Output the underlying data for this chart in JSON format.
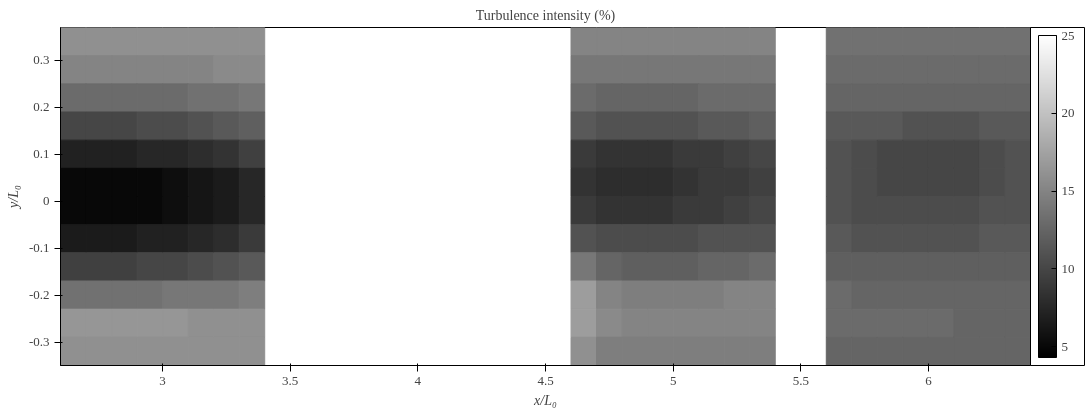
{
  "chart_data": {
    "type": "heatmap",
    "title": "Turbulence intensity (%)",
    "xlabel": "x/L₀",
    "ylabel": "y/L₀",
    "x": [
      2.65,
      2.75,
      2.85,
      2.95,
      3.05,
      3.15,
      3.25,
      3.35,
      3.45,
      3.55,
      3.65,
      3.75,
      3.85,
      3.95,
      4.05,
      4.15,
      4.25,
      4.35,
      4.45,
      4.55,
      4.65,
      4.75,
      4.85,
      4.95,
      5.05,
      5.15,
      5.25,
      5.35,
      5.45,
      5.55,
      5.65,
      5.75,
      5.85,
      5.95,
      6.05,
      6.15,
      6.25,
      6.35
    ],
    "y": [
      0.34,
      0.28,
      0.22,
      0.16,
      0.1,
      0.04,
      -0.02,
      -0.08,
      -0.14,
      -0.2,
      -0.26,
      -0.32
    ],
    "cells": [
      [
        16,
        16,
        16,
        16,
        16,
        16,
        16,
        16,
        null,
        null,
        null,
        null,
        null,
        null,
        null,
        null,
        null,
        null,
        null,
        null,
        15,
        15,
        15,
        15,
        15,
        15,
        15,
        15,
        null,
        null,
        13.5,
        13.5,
        13.5,
        13.5,
        13.5,
        13.5,
        13.5,
        13.5
      ],
      [
        15,
        15,
        15,
        15,
        15,
        15,
        15.5,
        15.5,
        null,
        null,
        null,
        null,
        null,
        null,
        null,
        null,
        null,
        null,
        null,
        null,
        14,
        14,
        14,
        14,
        14,
        14,
        14,
        14,
        null,
        null,
        13,
        13,
        13,
        13,
        13,
        13,
        13,
        13
      ],
      [
        13,
        13,
        13,
        13,
        13,
        13.5,
        13.5,
        14,
        null,
        null,
        null,
        null,
        null,
        null,
        null,
        null,
        null,
        null,
        null,
        null,
        13,
        12.5,
        12.5,
        12.5,
        12.5,
        13,
        13,
        13,
        null,
        null,
        12.5,
        12.5,
        12.5,
        12.5,
        12.5,
        12.5,
        12.5,
        12.5
      ],
      [
        10,
        10,
        10,
        10.5,
        10.5,
        11,
        11.5,
        12,
        null,
        null,
        null,
        null,
        null,
        null,
        null,
        null,
        null,
        null,
        null,
        null,
        11.5,
        11,
        11,
        11,
        11,
        11.5,
        11.5,
        12,
        null,
        null,
        11.5,
        11.5,
        11.5,
        11,
        11,
        11,
        11.5,
        11.5
      ],
      [
        7,
        7,
        7,
        7.5,
        7.5,
        8,
        8.5,
        9.5,
        null,
        null,
        null,
        null,
        null,
        null,
        null,
        null,
        null,
        null,
        null,
        null,
        9,
        8.5,
        8.5,
        8.5,
        9,
        9,
        9.5,
        10,
        null,
        null,
        11,
        10.5,
        10,
        10,
        10,
        10,
        10.5,
        11
      ],
      [
        5,
        5,
        5,
        5,
        5.5,
        6,
        6.5,
        7.5,
        null,
        null,
        null,
        null,
        null,
        null,
        null,
        null,
        null,
        null,
        null,
        null,
        8.5,
        8,
        8,
        8,
        8.5,
        9,
        9,
        9.5,
        null,
        null,
        11,
        10.5,
        10,
        10,
        10,
        10,
        10.5,
        11
      ],
      [
        5,
        5,
        5,
        5,
        5.5,
        6,
        6.5,
        7.5,
        null,
        null,
        null,
        null,
        null,
        null,
        null,
        null,
        null,
        null,
        null,
        null,
        9,
        8.5,
        8.5,
        8.5,
        9,
        9,
        9.5,
        10,
        null,
        null,
        11,
        10.5,
        10.5,
        10.5,
        10.5,
        10.5,
        11,
        11
      ],
      [
        6.5,
        6.5,
        6.5,
        7,
        7,
        7.5,
        8,
        9,
        null,
        null,
        null,
        null,
        null,
        null,
        null,
        null,
        null,
        null,
        null,
        null,
        11,
        10.5,
        10.5,
        10.5,
        10.5,
        11,
        11,
        11,
        null,
        null,
        11.5,
        11,
        11,
        11,
        11,
        11,
        11.5,
        11.5
      ],
      [
        9.5,
        9.5,
        9.5,
        10,
        10,
        10.5,
        11,
        11.5,
        null,
        null,
        null,
        null,
        null,
        null,
        null,
        null,
        null,
        null,
        null,
        null,
        14,
        12.5,
        12,
        12,
        12,
        12.5,
        12.5,
        13,
        null,
        null,
        12,
        12,
        12,
        12,
        12,
        12,
        12,
        12
      ],
      [
        13.5,
        13.5,
        13.5,
        13.5,
        14,
        14,
        14,
        14.5,
        null,
        null,
        null,
        null,
        null,
        null,
        null,
        null,
        null,
        null,
        null,
        null,
        17,
        15,
        14.5,
        14.5,
        14.5,
        14.5,
        15,
        15,
        null,
        null,
        13,
        12.5,
        12.5,
        12.5,
        12.5,
        12.5,
        12.5,
        12.5
      ],
      [
        16.5,
        16.5,
        16.5,
        16.5,
        16.5,
        16,
        16,
        16,
        null,
        null,
        null,
        null,
        null,
        null,
        null,
        null,
        null,
        null,
        null,
        null,
        17,
        15.5,
        15,
        15,
        15,
        15,
        15,
        15,
        null,
        null,
        13,
        13,
        13,
        13,
        13,
        12.5,
        12.5,
        12.5
      ],
      [
        16,
        16,
        16,
        16,
        16,
        16,
        16,
        16,
        null,
        null,
        null,
        null,
        null,
        null,
        null,
        null,
        null,
        null,
        null,
        null,
        16,
        14.5,
        14.5,
        14.5,
        14.5,
        14.5,
        14.5,
        14.5,
        null,
        null,
        12.5,
        12.5,
        12.5,
        12.5,
        12.5,
        12.5,
        12.5,
        12.5
      ]
    ],
    "xlim": [
      2.6,
      6.4
    ],
    "ylim": [
      -0.35,
      0.37
    ],
    "xticks": [
      3,
      3.5,
      4,
      4.5,
      5,
      5.5,
      6
    ],
    "yticks": [
      -0.3,
      -0.2,
      -0.1,
      0,
      0.1,
      0.2,
      0.3
    ],
    "clim": [
      4.3,
      25
    ],
    "cticks": [
      5,
      10,
      15,
      20,
      25
    ],
    "grid": false
  }
}
